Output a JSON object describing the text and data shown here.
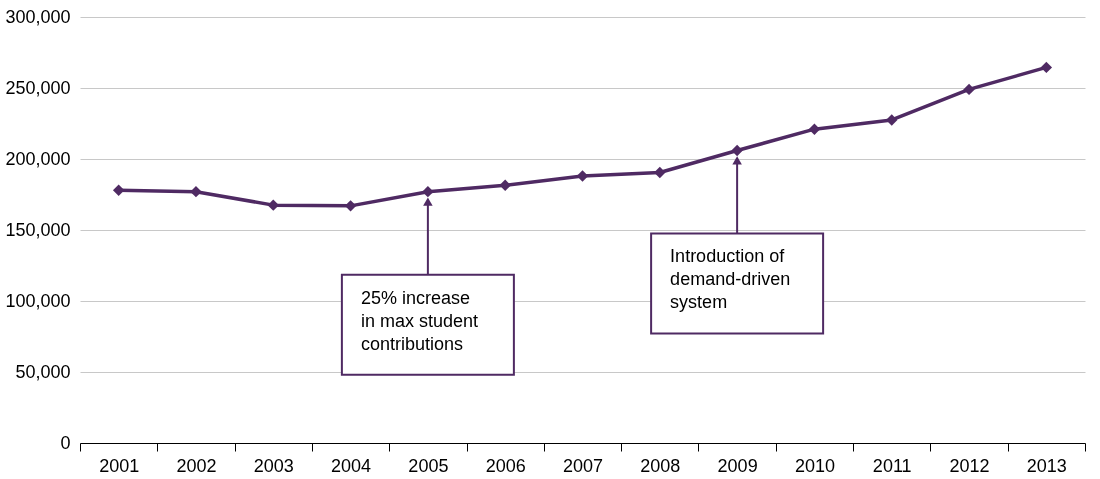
{
  "chart_data": {
    "type": "line",
    "categories": [
      "2001",
      "2002",
      "2003",
      "2004",
      "2005",
      "2006",
      "2007",
      "2008",
      "2009",
      "2010",
      "2011",
      "2012",
      "2013"
    ],
    "series": [
      {
        "color": "#4f2a63",
        "values": [
          178000,
          177000,
          167500,
          167000,
          177000,
          181500,
          188000,
          190500,
          206000,
          221000,
          227500,
          249000,
          264500
        ]
      }
    ],
    "ylim": [
      0,
      300000
    ],
    "yticks": [
      0,
      {
        "value": 50000,
        "label": "50,000"
      },
      {
        "value": 100000,
        "label": "100,000"
      },
      {
        "value": 150000,
        "label": "150,000"
      },
      {
        "value": 200000,
        "label": "200,000"
      },
      {
        "value": 250000,
        "label": "250,000"
      },
      {
        "value": 300000,
        "label": "300,000"
      }
    ],
    "grid": "y",
    "marker": "diamond",
    "line_style": "solid",
    "annotations": [
      {
        "text": "25% increase\nin max student\ncontributions",
        "x": "2005",
        "y": 177000
      },
      {
        "text": "Introduction of\ndemand-driven\nsystem",
        "x": "2009",
        "y": 206000
      }
    ]
  }
}
